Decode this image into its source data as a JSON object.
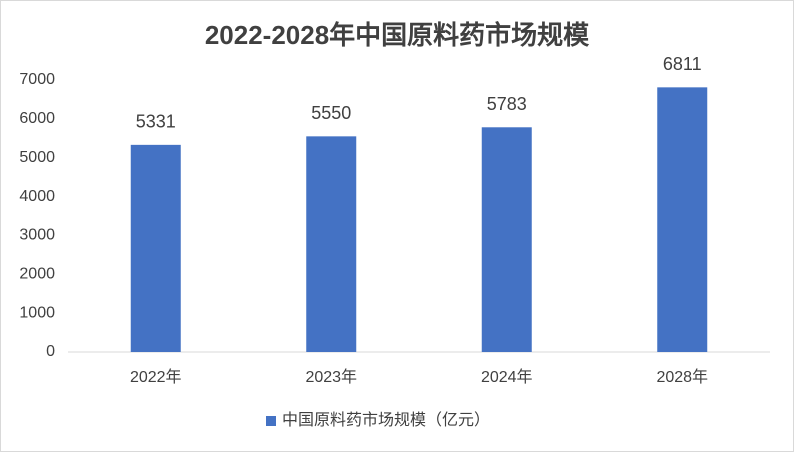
{
  "chart_data": {
    "type": "bar",
    "title": "2022-2028年中国原料药市场规模",
    "categories": [
      "2022年",
      "2023年",
      "2024年",
      "2028年"
    ],
    "series": [
      {
        "name": "中国原料药市场规模（亿元）",
        "color": "#4472c4",
        "values": [
          5331,
          5550,
          5783,
          6811
        ]
      }
    ],
    "ylim": [
      0,
      7000
    ],
    "yticks": [
      0,
      1000,
      2000,
      3000,
      4000,
      5000,
      6000,
      7000
    ],
    "grid": false,
    "legend": "bottom"
  }
}
